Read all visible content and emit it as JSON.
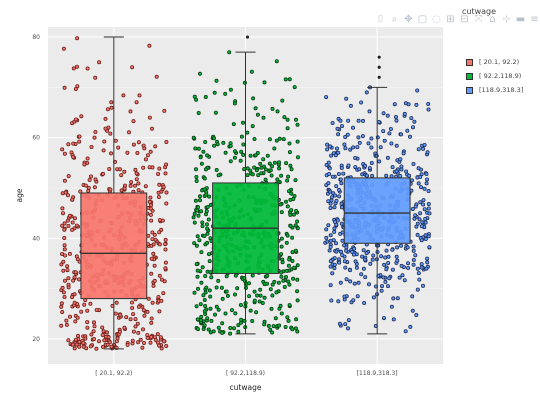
{
  "toolbar": {
    "icons": [
      "camera-icon",
      "zoom-icon",
      "pan-icon",
      "box-select-icon",
      "lasso-icon",
      "zoom-in-icon",
      "zoom-out-icon",
      "autoscale-icon",
      "reset-axes-icon",
      "spike-lines-icon",
      "hover-closest-icon",
      "hover-compare-icon",
      "plotly-logo-icon"
    ]
  },
  "legend_title": "cutwage",
  "chart_data": {
    "type": "box",
    "xlabel": "cutwage",
    "ylabel": "age",
    "ylim": [
      15,
      82
    ],
    "yticks": [
      20,
      40,
      60,
      80
    ],
    "grid": true,
    "legend_position": "right",
    "categories": [
      "[ 20.1, 92.2)",
      "[ 92.2,118.9)",
      "[118.9,318.3]"
    ],
    "legend_labels": [
      "[ 20.1, 92.2)",
      "[ 92.2,118.9)",
      "[118.9,318.3]"
    ],
    "colors": [
      "#f8766d",
      "#00ba38",
      "#619cff"
    ],
    "series": [
      {
        "category": "[ 20.1, 92.2)",
        "lower_whisker": 18,
        "q1": 28,
        "median": 37,
        "q3": 49,
        "upper_whisker": 80,
        "outliers": []
      },
      {
        "category": "[ 92.2,118.9)",
        "lower_whisker": 21,
        "q1": 33,
        "median": 42,
        "q3": 51,
        "upper_whisker": 77,
        "outliers": [
          80
        ]
      },
      {
        "category": "[118.9,318.3]",
        "lower_whisker": 21,
        "q1": 39,
        "median": 45,
        "q3": 52,
        "upper_whisker": 70,
        "outliers": [
          72,
          74,
          76
        ]
      }
    ]
  }
}
